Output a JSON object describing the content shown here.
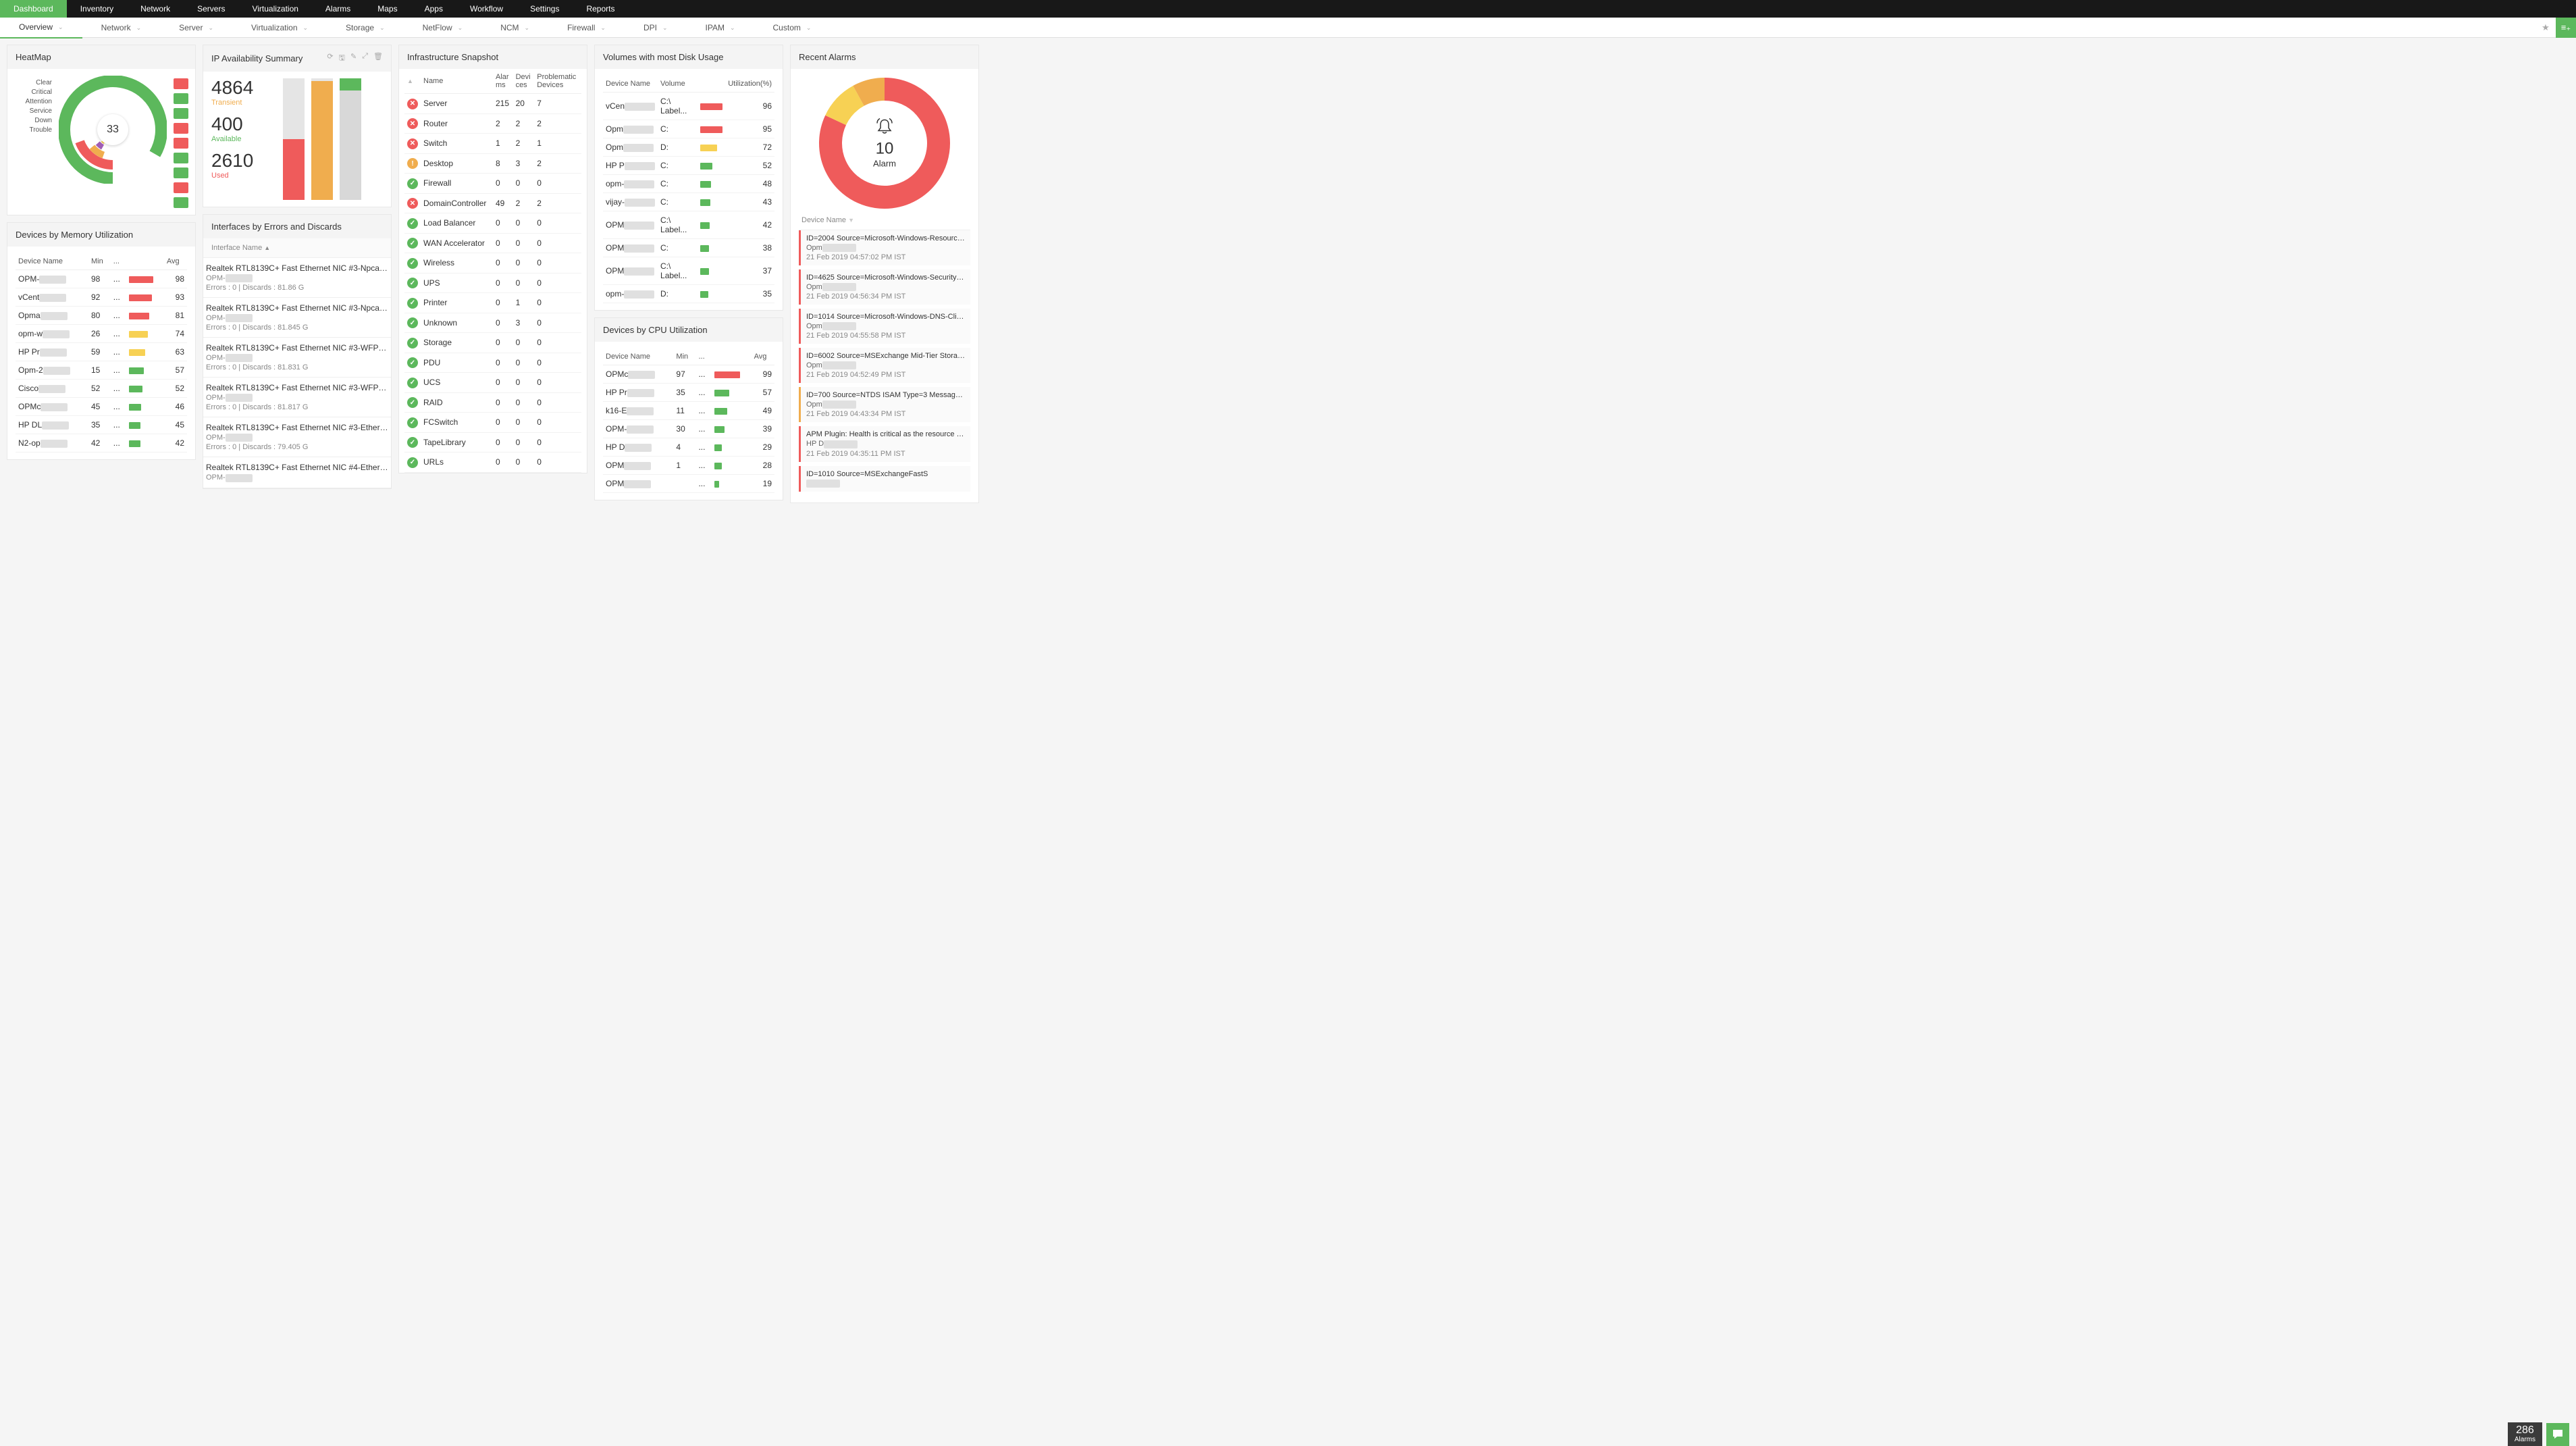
{
  "colors": {
    "green": "#5cb85c",
    "red": "#ef5b5b",
    "orange": "#f0ad4e",
    "yellow": "#f7d154",
    "purple": "#a05db5",
    "grey": "#d8d8d8",
    "darkred": "#b23a3a"
  },
  "topnav": [
    "Dashboard",
    "Inventory",
    "Network",
    "Servers",
    "Virtualization",
    "Alarms",
    "Maps",
    "Apps",
    "Workflow",
    "Settings",
    "Reports"
  ],
  "topnav_active": 0,
  "subnav": [
    "Overview",
    "Network",
    "Server",
    "Virtualization",
    "Storage",
    "NetFlow",
    "NCM",
    "Firewall",
    "DPI",
    "IPAM",
    "Custom"
  ],
  "subnav_active": 0,
  "heatmap": {
    "title": "HeatMap",
    "legend": [
      "Clear",
      "Critical",
      "Attention",
      "Service Down",
      "Trouble"
    ],
    "center_value": "33",
    "arcs": [
      {
        "color": "#5cb85c",
        "start": 90,
        "span": 300,
        "r": 72,
        "w": 18
      },
      {
        "color": "#ef5b5b",
        "start": 90,
        "span": 70,
        "r": 52,
        "w": 14
      },
      {
        "color": "#f0ad4e",
        "start": 110,
        "span": 30,
        "r": 40,
        "w": 10
      },
      {
        "color": "#a05db5",
        "start": 120,
        "span": 18,
        "r": 30,
        "w": 8
      },
      {
        "color": "#f7d154",
        "start": 122,
        "span": 12,
        "r": 22,
        "w": 6
      }
    ],
    "squares": [
      "#ef5b5b",
      "#5cb85c",
      "#5cb85c",
      "#ef5b5b",
      "#ef5b5b",
      "#5cb85c",
      "#5cb85c",
      "#ef5b5b",
      "#5cb85c"
    ]
  },
  "ip_summary": {
    "title": "IP Availability Summary",
    "stats": [
      {
        "value": "4864",
        "label": "Transient",
        "color": "#f0ad4e"
      },
      {
        "value": "400",
        "label": "Available",
        "color": "#5cb85c"
      },
      {
        "value": "2610",
        "label": "Used",
        "color": "#ef5b5b"
      }
    ],
    "bars": [
      {
        "segments": [
          {
            "color": "#ef5b5b",
            "pct": 50
          }
        ]
      },
      {
        "segments": [
          {
            "color": "#f0ad4e",
            "pct": 98
          }
        ]
      },
      {
        "segments": [
          {
            "color": "#5cb85c",
            "pct": 10
          },
          {
            "color": "#d8d8d8",
            "pct": 90
          }
        ]
      }
    ]
  },
  "mem_util": {
    "title": "Devices by Memory Utilization",
    "columns": [
      "Device Name",
      "Min",
      "...",
      "",
      "Avg"
    ],
    "rows": [
      {
        "dev": "OPM-",
        "min": "98",
        "barColor": "#ef5b5b",
        "barPct": 90,
        "avg": "98"
      },
      {
        "dev": "vCent",
        "min": "92",
        "barColor": "#ef5b5b",
        "barPct": 86,
        "avg": "93"
      },
      {
        "dev": "Opma",
        "min": "80",
        "barColor": "#ef5b5b",
        "barPct": 76,
        "avg": "81"
      },
      {
        "dev": "opm-w",
        "min": "26",
        "barColor": "#f7d154",
        "barPct": 70,
        "avg": "74"
      },
      {
        "dev": "HP Pr",
        "min": "59",
        "barColor": "#f7d154",
        "barPct": 60,
        "avg": "63"
      },
      {
        "dev": "Opm-2",
        "min": "15",
        "barColor": "#5cb85c",
        "barPct": 56,
        "avg": "57"
      },
      {
        "dev": "Cisco",
        "min": "52",
        "barColor": "#5cb85c",
        "barPct": 50,
        "avg": "52"
      },
      {
        "dev": "OPMc",
        "min": "45",
        "barColor": "#5cb85c",
        "barPct": 46,
        "avg": "46"
      },
      {
        "dev": "HP DL",
        "min": "35",
        "barColor": "#5cb85c",
        "barPct": 44,
        "avg": "45"
      },
      {
        "dev": "N2-op",
        "min": "42",
        "barColor": "#5cb85c",
        "barPct": 42,
        "avg": "42"
      }
    ]
  },
  "interfaces": {
    "title": "Interfaces by Errors and Discards",
    "header": "Interface Name",
    "rows": [
      {
        "name": "Realtek RTL8139C+ Fast Ethernet NIC #3-Npcap Pack...",
        "dev": "OPM-",
        "stats": "Errors : 0 | Discards : 81.86 G"
      },
      {
        "name": "Realtek RTL8139C+ Fast Ethernet NIC #3-Npcap Pack...",
        "dev": "OPM-",
        "stats": "Errors : 0 | Discards : 81.845 G"
      },
      {
        "name": "Realtek RTL8139C+ Fast Ethernet NIC #3-WFP Nativ...",
        "dev": "OPM-",
        "stats": "Errors : 0 | Discards : 81.831 G"
      },
      {
        "name": "Realtek RTL8139C+ Fast Ethernet NIC #3-WFP 802.3 ...",
        "dev": "OPM-",
        "stats": "Errors : 0 | Discards : 81.817 G"
      },
      {
        "name": "Realtek RTL8139C+ Fast Ethernet NIC #3-Ethernet 3",
        "dev": "OPM-",
        "stats": "Errors : 0 | Discards : 79.405 G"
      },
      {
        "name": "Realtek RTL8139C+ Fast Ethernet NIC #4-Ethernet 4",
        "dev": "OPM-",
        "stats": ""
      }
    ]
  },
  "infra": {
    "title": "Infrastructure Snapshot",
    "columns": [
      "",
      "Name",
      "Alarms",
      "Devices",
      "Problematic Devices"
    ],
    "rows": [
      {
        "status": "red",
        "name": "Server",
        "a": "215",
        "d": "20",
        "p": "7"
      },
      {
        "status": "red",
        "name": "Router",
        "a": "2",
        "d": "2",
        "p": "2"
      },
      {
        "status": "red",
        "name": "Switch",
        "a": "1",
        "d": "2",
        "p": "1"
      },
      {
        "status": "orange",
        "name": "Desktop",
        "a": "8",
        "d": "3",
        "p": "2"
      },
      {
        "status": "green",
        "name": "Firewall",
        "a": "0",
        "d": "0",
        "p": "0"
      },
      {
        "status": "red",
        "name": "DomainController",
        "a": "49",
        "d": "2",
        "p": "2"
      },
      {
        "status": "green",
        "name": "Load Balancer",
        "a": "0",
        "d": "0",
        "p": "0"
      },
      {
        "status": "green",
        "name": "WAN Accelerator",
        "a": "0",
        "d": "0",
        "p": "0"
      },
      {
        "status": "green",
        "name": "Wireless",
        "a": "0",
        "d": "0",
        "p": "0"
      },
      {
        "status": "green",
        "name": "UPS",
        "a": "0",
        "d": "0",
        "p": "0"
      },
      {
        "status": "green",
        "name": "Printer",
        "a": "0",
        "d": "1",
        "p": "0"
      },
      {
        "status": "green",
        "name": "Unknown",
        "a": "0",
        "d": "3",
        "p": "0"
      },
      {
        "status": "green",
        "name": "Storage",
        "a": "0",
        "d": "0",
        "p": "0"
      },
      {
        "status": "green",
        "name": "PDU",
        "a": "0",
        "d": "0",
        "p": "0"
      },
      {
        "status": "green",
        "name": "UCS",
        "a": "0",
        "d": "0",
        "p": "0"
      },
      {
        "status": "green",
        "name": "RAID",
        "a": "0",
        "d": "0",
        "p": "0"
      },
      {
        "status": "green",
        "name": "FCSwitch",
        "a": "0",
        "d": "0",
        "p": "0"
      },
      {
        "status": "green",
        "name": "TapeLibrary",
        "a": "0",
        "d": "0",
        "p": "0"
      },
      {
        "status": "green",
        "name": "URLs",
        "a": "0",
        "d": "0",
        "p": "0"
      }
    ]
  },
  "disk": {
    "title": "Volumes with most Disk Usage",
    "columns": [
      "Device Name",
      "Volume",
      "",
      "Utilization(%)"
    ],
    "rows": [
      {
        "dev": "vCen",
        "vol": "C:\\ Label...",
        "barColor": "#ef5b5b",
        "barPct": 96,
        "util": "96"
      },
      {
        "dev": "Opm",
        "vol": "C:",
        "barColor": "#ef5b5b",
        "barPct": 95,
        "util": "95"
      },
      {
        "dev": "Opm",
        "vol": "D:",
        "barColor": "#f7d154",
        "barPct": 72,
        "util": "72"
      },
      {
        "dev": "HP P",
        "vol": "C:",
        "barColor": "#5cb85c",
        "barPct": 52,
        "util": "52"
      },
      {
        "dev": "opm-",
        "vol": "C:",
        "barColor": "#5cb85c",
        "barPct": 48,
        "util": "48"
      },
      {
        "dev": "vijay-",
        "vol": "C:",
        "barColor": "#5cb85c",
        "barPct": 43,
        "util": "43"
      },
      {
        "dev": "OPM",
        "vol": "C:\\ Label...",
        "barColor": "#5cb85c",
        "barPct": 42,
        "util": "42"
      },
      {
        "dev": "OPM",
        "vol": "C:",
        "barColor": "#5cb85c",
        "barPct": 38,
        "util": "38"
      },
      {
        "dev": "OPM",
        "vol": "C:\\ Label...",
        "barColor": "#5cb85c",
        "barPct": 37,
        "util": "37"
      },
      {
        "dev": "opm-",
        "vol": "D:",
        "barColor": "#5cb85c",
        "barPct": 35,
        "util": "35"
      }
    ]
  },
  "cpu_util": {
    "title": "Devices by CPU Utilization",
    "columns": [
      "Device Name",
      "Min",
      "...",
      "",
      "Avg"
    ],
    "rows": [
      {
        "dev": "OPMc",
        "min": "97",
        "barColor": "#ef5b5b",
        "barPct": 95,
        "avg": "99"
      },
      {
        "dev": "HP Pr",
        "min": "35",
        "barColor": "#5cb85c",
        "barPct": 57,
        "avg": "57"
      },
      {
        "dev": "k16-E",
        "min": "11",
        "barColor": "#5cb85c",
        "barPct": 49,
        "avg": "49"
      },
      {
        "dev": "OPM-",
        "min": "30",
        "barColor": "#5cb85c",
        "barPct": 39,
        "avg": "39"
      },
      {
        "dev": "HP D",
        "min": "4",
        "barColor": "#5cb85c",
        "barPct": 29,
        "avg": "29"
      },
      {
        "dev": "OPM",
        "min": "1",
        "barColor": "#5cb85c",
        "barPct": 28,
        "avg": "28"
      },
      {
        "dev": "OPM",
        "min": "",
        "barColor": "#5cb85c",
        "barPct": 19,
        "avg": "19"
      }
    ]
  },
  "alarms": {
    "title": "Recent Alarms",
    "count": "10",
    "label": "Alarm",
    "donut": [
      {
        "color": "#ef5b5b",
        "pct": 82
      },
      {
        "color": "#f7d154",
        "pct": 10
      },
      {
        "color": "#f0ad4e",
        "pct": 8
      }
    ],
    "list_header": "Device Name",
    "rows": [
      {
        "color": "#ef5b5b",
        "id": "ID=2004 Source=Microsoft-Windows-Resource-Exha...",
        "dev": "Opm",
        "ts": "21 Feb 2019 04:57:02 PM IST"
      },
      {
        "color": "#ef5b5b",
        "id": "ID=4625 Source=Microsoft-Windows-Security-Auditi...",
        "dev": "Opm",
        "ts": "21 Feb 2019 04:56:34 PM IST"
      },
      {
        "color": "#ef5b5b",
        "id": "ID=1014 Source=Microsoft-Windows-DNS-Client Typ...",
        "dev": "Opm",
        "ts": "21 Feb 2019 04:55:58 PM IST"
      },
      {
        "color": "#ef5b5b",
        "id": "ID=6002 Source=MSExchange Mid-Tier Storage Type=...",
        "dev": "Opm",
        "ts": "21 Feb 2019 04:52:49 PM IST"
      },
      {
        "color": "#f0ad4e",
        "id": "ID=700 Source=NTDS ISAM Type=3 Message=NTDS (...",
        "dev": "Opm",
        "ts": "21 Feb 2019 04:43:34 PM IST"
      },
      {
        "color": "#ef5b5b",
        "id": "APM Plugin: Health is critical as the resource is not ava...",
        "dev": "HP D",
        "ts": "21 Feb 2019 04:35:11 PM IST"
      },
      {
        "color": "#ef5b5b",
        "id": "ID=1010 Source=MSExchangeFastS",
        "dev": "",
        "ts": ""
      }
    ]
  },
  "footer": {
    "count": "286",
    "label": "Alarms"
  }
}
